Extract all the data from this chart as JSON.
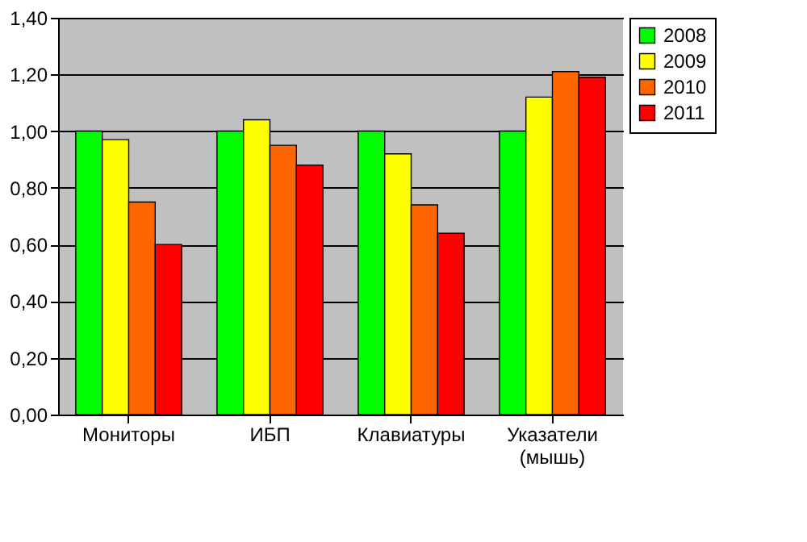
{
  "chart_data": {
    "type": "bar",
    "categories": [
      "Мониторы",
      "ИБП",
      "Клавиатуры",
      "Указатели (мышь)"
    ],
    "series": [
      {
        "name": "2008",
        "color": "#00ff00",
        "values": [
          1.0,
          1.0,
          1.0,
          1.0
        ]
      },
      {
        "name": "2009",
        "color": "#ffff00",
        "values": [
          0.97,
          1.04,
          0.92,
          1.12
        ]
      },
      {
        "name": "2010",
        "color": "#ff6600",
        "values": [
          0.75,
          0.95,
          0.74,
          1.21
        ]
      },
      {
        "name": "2011",
        "color": "#ff0000",
        "values": [
          0.6,
          0.88,
          0.64,
          1.19
        ]
      }
    ],
    "ylim": [
      0,
      1.4
    ],
    "yticks": [
      {
        "value": 0,
        "label": "0,00"
      },
      {
        "value": 0.2,
        "label": "0,20"
      },
      {
        "value": 0.4,
        "label": "0,40"
      },
      {
        "value": 0.6,
        "label": "0,60"
      },
      {
        "value": 0.8,
        "label": "0,80"
      },
      {
        "value": 1.0,
        "label": "1,00"
      },
      {
        "value": 1.2,
        "label": "1,20"
      },
      {
        "value": 1.4,
        "label": "1,40"
      }
    ],
    "grid": "y",
    "legend": "right"
  }
}
